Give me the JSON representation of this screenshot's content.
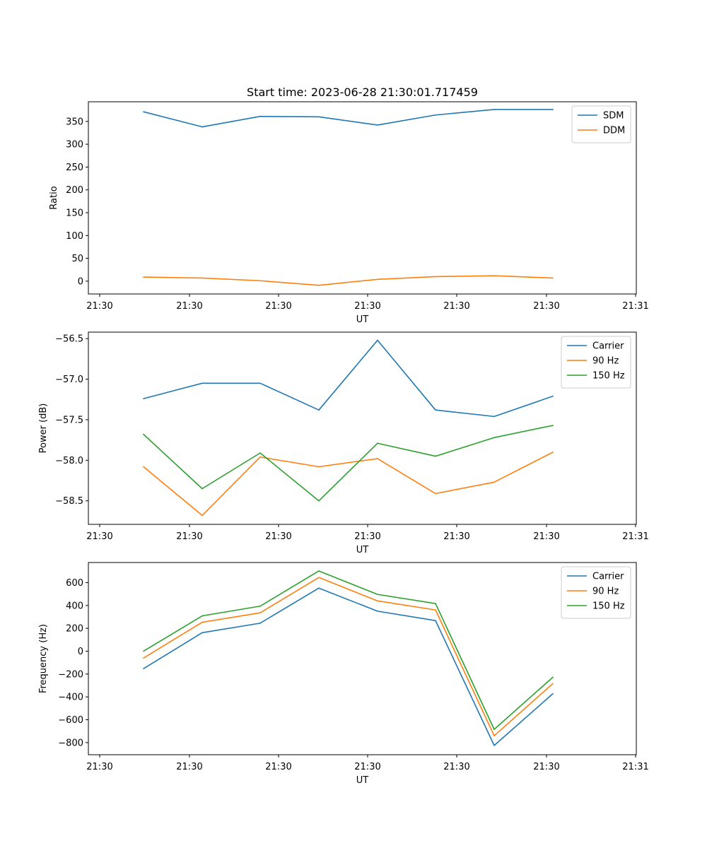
{
  "figure_title": "Start time: 2023-06-28 21:30:01.717459",
  "colors": {
    "blue": "#1f77b4",
    "orange": "#ff7f0e",
    "green": "#2ca02c"
  },
  "chart_data": [
    {
      "type": "line",
      "xlabel": "UT",
      "ylabel": "Ratio",
      "x_tick_labels": [
        "21:30",
        "21:30",
        "21:30",
        "21:30",
        "21:30",
        "21:30",
        "21:31"
      ],
      "y_ticks": [
        0,
        50,
        100,
        150,
        200,
        250,
        300,
        350
      ],
      "ylim": [
        -28,
        393
      ],
      "legend_location": "top-right",
      "series": [
        {
          "name": "SDM",
          "color": "#1f77b4",
          "values": [
            371,
            338,
            361,
            360,
            342,
            364,
            376,
            376
          ]
        },
        {
          "name": "DDM",
          "color": "#ff7f0e",
          "values": [
            9,
            7,
            1,
            -9,
            4,
            10,
            12,
            7
          ]
        }
      ]
    },
    {
      "type": "line",
      "xlabel": "UT",
      "ylabel": "Power (dB)",
      "x_tick_labels": [
        "21:30",
        "21:30",
        "21:30",
        "21:30",
        "21:30",
        "21:30",
        "21:31"
      ],
      "y_ticks": [
        -58.5,
        -58.0,
        -57.5,
        -57.0,
        -56.5
      ],
      "y_tick_labels": [
        "−58.5",
        "−58.0",
        "−57.5",
        "−57.0",
        "−56.5"
      ],
      "ylim": [
        -58.79,
        -56.42
      ],
      "legend_location": "top-right",
      "series": [
        {
          "name": "Carrier",
          "color": "#1f77b4",
          "values": [
            -57.24,
            -57.05,
            -57.05,
            -57.38,
            -56.52,
            -57.38,
            -57.46,
            -57.21
          ]
        },
        {
          "name": "90 Hz",
          "color": "#ff7f0e",
          "values": [
            -58.08,
            -58.68,
            -57.96,
            -58.08,
            -57.98,
            -58.41,
            -58.27,
            -57.9
          ]
        },
        {
          "name": "150 Hz",
          "color": "#2ca02c",
          "values": [
            -57.68,
            -58.35,
            -57.91,
            -58.5,
            -57.79,
            -57.95,
            -57.72,
            -57.57
          ]
        }
      ]
    },
    {
      "type": "line",
      "xlabel": "UT",
      "ylabel": "Frequency (Hz)",
      "x_tick_labels": [
        "21:30",
        "21:30",
        "21:30",
        "21:30",
        "21:30",
        "21:30",
        "21:31"
      ],
      "y_ticks": [
        -800,
        -600,
        -400,
        -200,
        0,
        200,
        400,
        600
      ],
      "y_tick_labels": [
        "−800",
        "−600",
        "−400",
        "−200",
        "0",
        "200",
        "400",
        "600"
      ],
      "ylim": [
        -906,
        776
      ],
      "legend_location": "top-right",
      "series": [
        {
          "name": "Carrier",
          "color": "#1f77b4",
          "values": [
            -153,
            162,
            245,
            552,
            350,
            268,
            -825,
            -372
          ]
        },
        {
          "name": "90 Hz",
          "color": "#ff7f0e",
          "values": [
            -60,
            253,
            336,
            645,
            440,
            361,
            -740,
            -283
          ]
        },
        {
          "name": "150 Hz",
          "color": "#2ca02c",
          "values": [
            0,
            309,
            394,
            702,
            497,
            417,
            -684,
            -228
          ]
        }
      ]
    }
  ]
}
